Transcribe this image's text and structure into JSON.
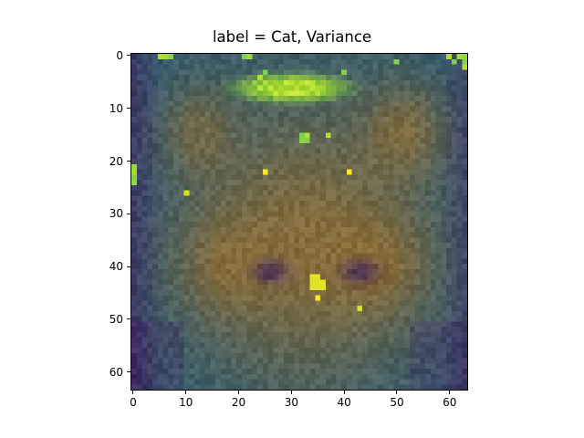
{
  "chart_data": {
    "type": "heatmap",
    "title": "label = Cat, Variance",
    "xlabel": "",
    "ylabel": "",
    "x_ticks": [
      "0",
      "10",
      "20",
      "30",
      "40",
      "50",
      "60"
    ],
    "y_ticks": [
      "0",
      "10",
      "20",
      "30",
      "40",
      "50",
      "60"
    ],
    "x_range": [
      -0.5,
      63.5
    ],
    "y_range": [
      -0.5,
      63.5
    ],
    "y_inverted": true,
    "grid": false,
    "colormap": "viridis",
    "image_size": [
      64,
      64
    ],
    "highlight_points": [
      {
        "x": 25,
        "y": 22,
        "value": 1.0
      },
      {
        "x": 41,
        "y": 22,
        "value": 1.0
      },
      {
        "x": 10,
        "y": 26,
        "value": 0.95
      },
      {
        "x": 35,
        "y": 46,
        "value": 1.0
      },
      {
        "x": 43,
        "y": 48,
        "value": 0.95
      },
      {
        "x": 34,
        "y": 42,
        "value": 0.95
      },
      {
        "x": 36,
        "y": 43,
        "value": 0.95
      },
      {
        "x": 33,
        "y": 15,
        "value": 0.85
      },
      {
        "x": 37,
        "y": 15,
        "value": 0.9
      }
    ]
  }
}
